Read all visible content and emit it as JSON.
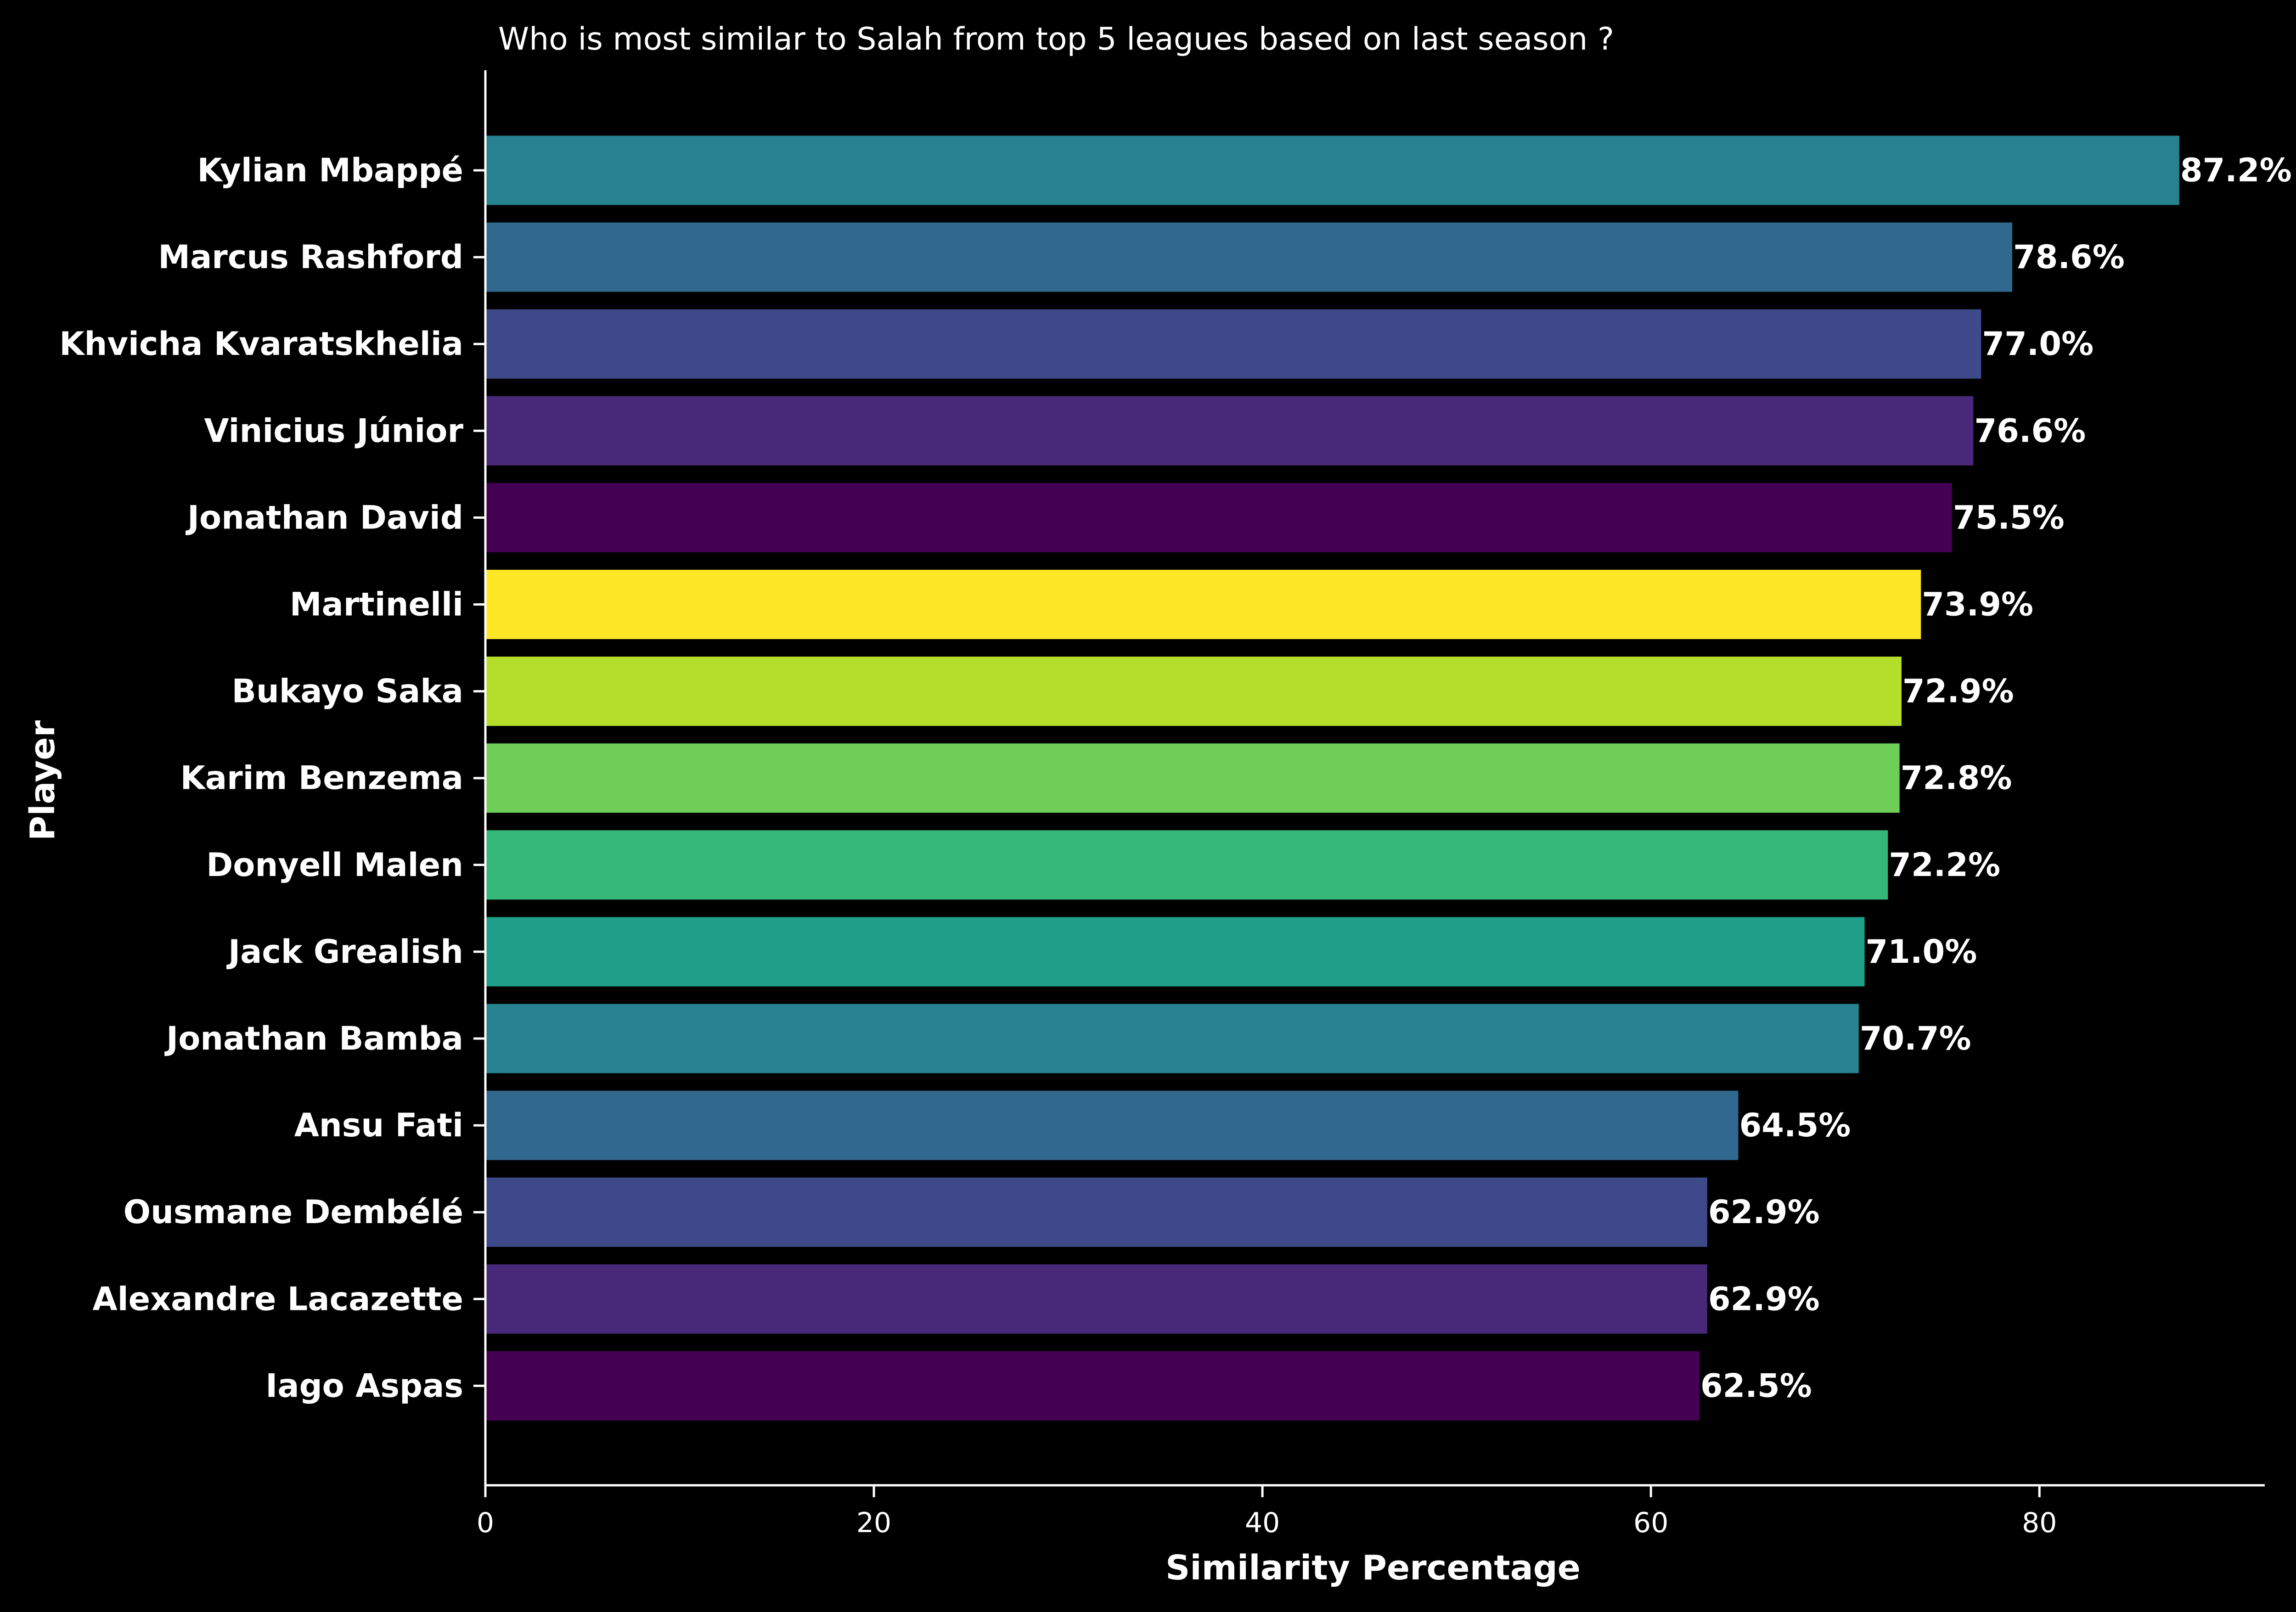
{
  "chart_data": {
    "type": "bar",
    "orientation": "horizontal",
    "title": "Who is most similar to Salah from top 5 leagues based on last season ?",
    "xlabel": "Similarity Percentage",
    "ylabel": "Player",
    "xlim": [
      0,
      91.6
    ],
    "x_ticks": [
      0,
      20,
      40,
      60,
      80
    ],
    "grid": false,
    "legend": "none",
    "background": "#000000",
    "categories": [
      "Kylian Mbappé",
      "Marcus Rashford",
      "Khvicha Kvaratskhelia",
      "Vinicius Júnior",
      "Jonathan David",
      "Martinelli",
      "Bukayo Saka",
      "Karim Benzema",
      "Donyell Malen",
      "Jack Grealish",
      "Jonathan Bamba",
      "Ansu Fati",
      "Ousmane Dembélé",
      "Alexandre Lacazette",
      "Iago Aspas"
    ],
    "values": [
      87.2,
      78.6,
      77.0,
      76.6,
      75.5,
      73.9,
      72.9,
      72.8,
      72.2,
      71.0,
      70.7,
      64.5,
      62.9,
      62.9,
      62.5
    ],
    "value_labels": [
      "87.2%",
      "78.6%",
      "77.0%",
      "76.6%",
      "75.5%",
      "73.9%",
      "72.9%",
      "72.8%",
      "72.2%",
      "71.0%",
      "70.7%",
      "64.5%",
      "62.9%",
      "62.9%",
      "62.5%"
    ],
    "colors": [
      "#26828e",
      "#31688e",
      "#3e4989",
      "#482878",
      "#440154",
      "#fde725",
      "#b5de2b",
      "#6ece58",
      "#35b779",
      "#1f9e89",
      "#26828e",
      "#31688e",
      "#3e4989",
      "#482878",
      "#440154"
    ]
  }
}
